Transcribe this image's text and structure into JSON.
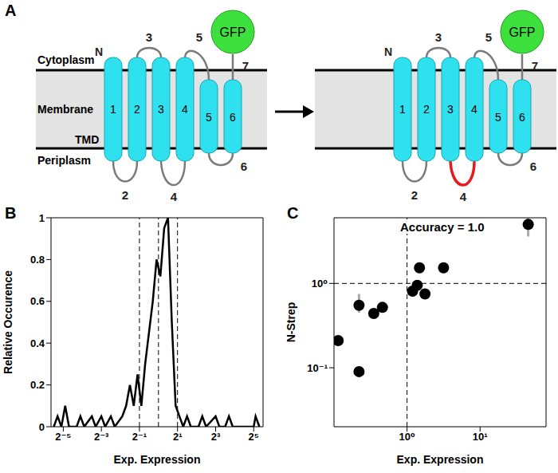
{
  "panel_labels": [
    "A",
    "B",
    "C"
  ],
  "diagram": {
    "regions": [
      "Cytoplasm",
      "Membrane",
      "Periplasm"
    ],
    "domain_label": "TMD",
    "n_terminus": "N",
    "helices": [
      1,
      2,
      3,
      4,
      5,
      6
    ],
    "loops": [
      2,
      3,
      4,
      5,
      6,
      7
    ],
    "fusion": "GFP",
    "highlighted_loop": 4,
    "highlight_color": "#e41a1c"
  },
  "chart_data": [
    {
      "type": "line",
      "x_label": "Exp. Expression",
      "y_label": "Relative Occurence",
      "x": [
        0.0221,
        0.0254,
        0.0292,
        0.0335,
        0.0385,
        0.0508,
        0.0583,
        0.067,
        0.0884,
        0.1015,
        0.125,
        0.1436,
        0.1768,
        0.2031,
        0.2679,
        0.3078,
        0.3536,
        0.4061,
        0.4665,
        0.5359,
        0.6156,
        0.7071,
        0.8123,
        0.933,
        1.0718,
        1.2311,
        1.4142,
        1.6245,
        1.8661,
        2.1435,
        2.4623,
        2.8284,
        3.249,
        4.287,
        4.925,
        5.657,
        8,
        9.19,
        11.31,
        13,
        14.93,
        32,
        34.3,
        39.4
      ],
      "values": [
        0,
        0.05,
        0,
        0.1,
        0,
        0,
        0.05,
        0,
        0.05,
        0,
        0.05,
        0,
        0.05,
        0,
        0.05,
        0.1,
        0.2,
        0.1,
        0.25,
        0.1,
        0.3,
        0.45,
        0.6,
        0.8,
        0.72,
        0.95,
        1,
        0.5,
        0.1,
        0.05,
        0,
        0.05,
        0,
        0,
        0.05,
        0,
        0.05,
        0,
        0,
        0.05,
        0,
        0,
        0.05,
        0
      ],
      "color": "#000000",
      "log": "x",
      "xlim": [
        0.02,
        45
      ],
      "xticks": [
        {
          "value": 0.03125,
          "label": "2⁻⁵"
        },
        {
          "value": 0.125,
          "label": "2⁻³"
        },
        {
          "value": 0.5,
          "label": "2⁻¹"
        },
        {
          "value": 2,
          "label": "2¹"
        },
        {
          "value": 8,
          "label": "2³"
        },
        {
          "value": 32,
          "label": "2⁵"
        }
      ],
      "ylim": [
        0,
        1
      ],
      "yticks": [
        0,
        0.2,
        0.4,
        0.6,
        0.8,
        1
      ],
      "vlines": [
        0.5,
        1,
        2
      ]
    },
    {
      "type": "scatter",
      "annotation": "Accuracy = 1.0",
      "x_label": "Exp. Expression",
      "y_label": "N-Strep",
      "x": [
        0.114,
        0.22,
        0.22,
        0.35,
        0.46,
        1.19,
        1.38,
        1.48,
        1.76,
        3.16,
        45.6
      ],
      "values": [
        0.21,
        0.55,
        0.09,
        0.44,
        0.52,
        0.81,
        0.95,
        1.53,
        0.75,
        1.53,
        5.0
      ],
      "error_low": [
        null,
        0.45,
        null,
        null,
        null,
        null,
        null,
        null,
        null,
        null,
        3.6
      ],
      "error_high": [
        null,
        0.75,
        null,
        null,
        null,
        null,
        null,
        null,
        null,
        null,
        5.9
      ],
      "color": "#000000",
      "log": true,
      "xlim": [
        0.1,
        80
      ],
      "ylim": [
        0.02,
        6
      ],
      "xticks": [
        {
          "value": 1,
          "label": "10⁰"
        },
        {
          "value": 10,
          "label": "10¹"
        }
      ],
      "yticks": [
        {
          "value": 0.1,
          "label": "10⁻¹"
        },
        {
          "value": 1,
          "label": "10⁰"
        }
      ],
      "vlines": [
        1
      ],
      "hlines": [
        1
      ]
    }
  ]
}
